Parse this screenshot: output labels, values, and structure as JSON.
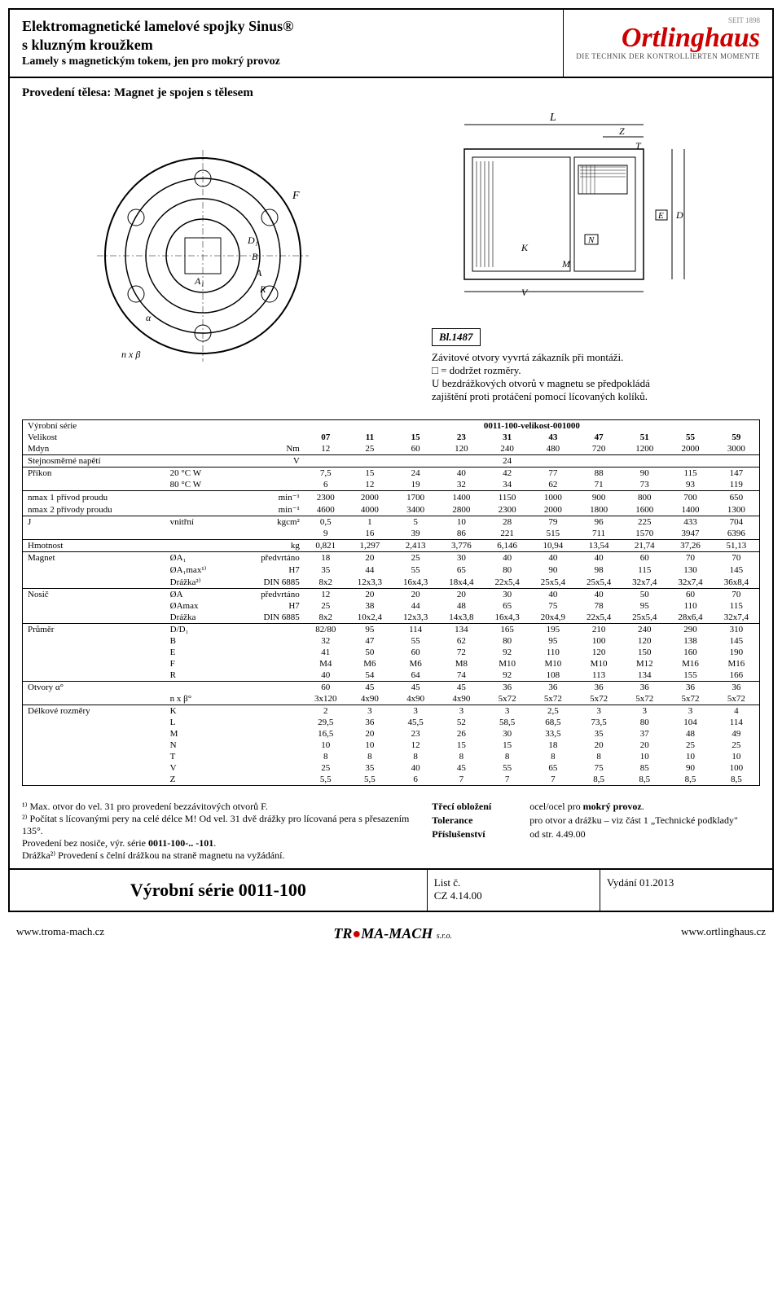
{
  "header": {
    "title1": "Elektromagnetické lamelové spojky Sinus®",
    "title2": "s kluzným kroužkem",
    "subtitle": "Lamely s magnetickým tokem, jen pro mokrý provoz",
    "logo_seit": "SEIT 1898",
    "logo": "Ortlinghaus",
    "logo_tag": "DIE TECHNIK DER KONTROLLIERTEN MOMENTE"
  },
  "body_title": "Provedení tělesa: Magnet je spojen s tělesem",
  "bl_label": "Bl.1487",
  "notes": {
    "n1": "Závitové otvory vyvrtá zákazník při montáži.",
    "n2": "□ = dodržet rozměry.",
    "n3": "U bezdrážkových otvorů v magnetu se předpokládá",
    "n4": "zajištění proti protáčení pomocí lícovaných kolíků."
  },
  "table": {
    "series_label": "Výrobní série",
    "size_label": "Velikost",
    "series_code": "0011-100-velikost-001000",
    "sizes": [
      "07",
      "11",
      "15",
      "23",
      "31",
      "43",
      "47",
      "51",
      "55",
      "59"
    ],
    "rows": [
      {
        "label": "Mdyn",
        "unit": "Nm",
        "values": [
          "12",
          "25",
          "60",
          "120",
          "240",
          "480",
          "720",
          "1200",
          "2000",
          "3000"
        ]
      },
      {
        "label": "Stejnosměrné napětí",
        "unit": "V",
        "values": [
          "",
          "",
          "",
          "",
          "24",
          "",
          "",
          "",
          "",
          ""
        ],
        "sep": true
      },
      {
        "label": "Příkon",
        "sub": "20 °C W",
        "unit": "",
        "values": [
          "7,5",
          "15",
          "24",
          "40",
          "42",
          "77",
          "88",
          "90",
          "115",
          "147"
        ],
        "sep": true
      },
      {
        "label": "",
        "sub": "80 °C W",
        "unit": "",
        "values": [
          "6",
          "12",
          "19",
          "32",
          "34",
          "62",
          "71",
          "73",
          "93",
          "119"
        ]
      },
      {
        "label": "nmax 1 přívod proudu",
        "unit": "min⁻¹",
        "values": [
          "2300",
          "2000",
          "1700",
          "1400",
          "1150",
          "1000",
          "900",
          "800",
          "700",
          "650"
        ],
        "sep": true
      },
      {
        "label": "nmax 2 přívody proudu",
        "unit": "min⁻¹",
        "values": [
          "4600",
          "4000",
          "3400",
          "2800",
          "2300",
          "2000",
          "1800",
          "1600",
          "1400",
          "1300"
        ]
      },
      {
        "label": "J",
        "sub": "vnitřní",
        "unit": "kgcm²",
        "values": [
          "0,5",
          "1",
          "5",
          "10",
          "28",
          "79",
          "96",
          "225",
          "433",
          "704"
        ],
        "sep": true
      },
      {
        "label": "",
        "unit": "",
        "values": [
          "9",
          "16",
          "39",
          "86",
          "221",
          "515",
          "711",
          "1570",
          "3947",
          "6396"
        ]
      },
      {
        "label": "Hmotnost",
        "unit": "kg",
        "values": [
          "0,821",
          "1,297",
          "2,413",
          "3,776",
          "6,146",
          "10,94",
          "13,54",
          "21,74",
          "37,26",
          "51,13"
        ],
        "sep": true
      },
      {
        "label": "Magnet",
        "sub": "ØA₁",
        "unit": "předvrtáno",
        "values": [
          "18",
          "20",
          "25",
          "30",
          "40",
          "40",
          "40",
          "60",
          "70",
          "70"
        ],
        "sep": true
      },
      {
        "label": "",
        "sub": "ØA₁max¹⁾",
        "unit": "H7",
        "values": [
          "35",
          "44",
          "55",
          "65",
          "80",
          "90",
          "98",
          "115",
          "130",
          "145"
        ]
      },
      {
        "label": "",
        "sub": "Drážka²⁾",
        "unit": "DIN 6885",
        "values": [
          "8x2",
          "12x3,3",
          "16x4,3",
          "18x4,4",
          "22x5,4",
          "25x5,4",
          "25x5,4",
          "32x7,4",
          "32x7,4",
          "36x8,4"
        ]
      },
      {
        "label": "Nosič",
        "sub": "ØA",
        "unit": "předvrtáno",
        "values": [
          "12",
          "20",
          "20",
          "20",
          "30",
          "40",
          "40",
          "50",
          "60",
          "70"
        ],
        "sep": true
      },
      {
        "label": "",
        "sub": "ØAmax",
        "unit": "H7",
        "values": [
          "25",
          "38",
          "44",
          "48",
          "65",
          "75",
          "78",
          "95",
          "110",
          "115"
        ]
      },
      {
        "label": "",
        "sub": "Drážka",
        "unit": "DIN 6885",
        "values": [
          "8x2",
          "10x2,4",
          "12x3,3",
          "14x3,8",
          "16x4,3",
          "20x4,9",
          "22x5,4",
          "25x5,4",
          "28x6,4",
          "32x7,4"
        ]
      },
      {
        "label": "Průměr",
        "sub": "D/D₁",
        "unit": "",
        "values": [
          "82/80",
          "95",
          "114",
          "134",
          "165",
          "195",
          "210",
          "240",
          "290",
          "310"
        ],
        "sep": true
      },
      {
        "label": "",
        "sub": "B",
        "unit": "",
        "values": [
          "32",
          "47",
          "55",
          "62",
          "80",
          "95",
          "100",
          "120",
          "138",
          "145"
        ]
      },
      {
        "label": "",
        "sub": "E",
        "unit": "",
        "values": [
          "41",
          "50",
          "60",
          "72",
          "92",
          "110",
          "120",
          "150",
          "160",
          "190"
        ]
      },
      {
        "label": "",
        "sub": "F",
        "unit": "",
        "values": [
          "M4",
          "M6",
          "M6",
          "M8",
          "M10",
          "M10",
          "M10",
          "M12",
          "M16",
          "M16"
        ]
      },
      {
        "label": "",
        "sub": "R",
        "unit": "",
        "values": [
          "40",
          "54",
          "64",
          "74",
          "92",
          "108",
          "113",
          "134",
          "155",
          "166"
        ]
      },
      {
        "label": "Otvory α°",
        "unit": "",
        "values": [
          "60",
          "45",
          "45",
          "45",
          "36",
          "36",
          "36",
          "36",
          "36",
          "36"
        ],
        "sep": true
      },
      {
        "label": "",
        "sub": "n x β°",
        "unit": "",
        "values": [
          "3x120",
          "4x90",
          "4x90",
          "4x90",
          "5x72",
          "5x72",
          "5x72",
          "5x72",
          "5x72",
          "5x72"
        ]
      },
      {
        "label": "Délkové rozměry",
        "sub": "K",
        "unit": "",
        "values": [
          "2",
          "3",
          "3",
          "3",
          "3",
          "2,5",
          "3",
          "3",
          "3",
          "4"
        ],
        "sep": true
      },
      {
        "label": "",
        "sub": "L",
        "unit": "",
        "values": [
          "29,5",
          "36",
          "45,5",
          "52",
          "58,5",
          "68,5",
          "73,5",
          "80",
          "104",
          "114"
        ]
      },
      {
        "label": "",
        "sub": "M",
        "unit": "",
        "values": [
          "16,5",
          "20",
          "23",
          "26",
          "30",
          "33,5",
          "35",
          "37",
          "48",
          "49"
        ]
      },
      {
        "label": "",
        "sub": "N",
        "unit": "",
        "values": [
          "10",
          "10",
          "12",
          "15",
          "15",
          "18",
          "20",
          "20",
          "25",
          "25"
        ]
      },
      {
        "label": "",
        "sub": "T",
        "unit": "",
        "values": [
          "8",
          "8",
          "8",
          "8",
          "8",
          "8",
          "8",
          "10",
          "10",
          "10"
        ]
      },
      {
        "label": "",
        "sub": "V",
        "unit": "",
        "values": [
          "25",
          "35",
          "40",
          "45",
          "55",
          "65",
          "75",
          "85",
          "90",
          "100"
        ]
      },
      {
        "label": "",
        "sub": "Z",
        "unit": "",
        "values": [
          "5,5",
          "5,5",
          "6",
          "7",
          "7",
          "7",
          "8,5",
          "8,5",
          "8,5",
          "8,5"
        ]
      }
    ]
  },
  "footnotes_left": {
    "f1": "¹⁾ Max. otvor do vel. 31 pro provedení bezzávitových otvorů F.",
    "f2": "²⁾ Počítat s lícovanými pery na celé délce M! Od vel. 31 dvě drážky pro lícovaná pera s přesazením 135°.",
    "f3": "Provedení bez nosiče, výr. série 0011-100-.. -101.",
    "f4": "Drážka²⁾ Provedení s čelní drážkou na straně magnetu na vyžádání."
  },
  "footnotes_right": {
    "k1": "Třecí obložení",
    "v1": "ocel/ocel pro mokrý provoz.",
    "k2": "Tolerance",
    "v2": "pro otvor a drážku – viz část 1 „Technické podklady\"",
    "k3": "Příslušenství",
    "v3": "od str. 4.49.00"
  },
  "footer": {
    "title": "Výrobní série 0011-100",
    "list": "List č.",
    "list_code": "CZ 4.14.00",
    "edition": "Vydání 01.2013"
  },
  "below": {
    "left": "www.troma-mach.cz",
    "mid1": "TR",
    "mid_red": "●",
    "mid2": "MA-MACH",
    "mid3": "s.r.o.",
    "right": "www.ortlinghaus.cz"
  },
  "diagram_labels": {
    "front": [
      "D₁",
      "B",
      "A",
      "A₁",
      "R",
      "α",
      "n x β",
      "F"
    ],
    "side": [
      "L",
      "Z",
      "T",
      "K",
      "N",
      "M",
      "V",
      "D",
      "E"
    ]
  }
}
